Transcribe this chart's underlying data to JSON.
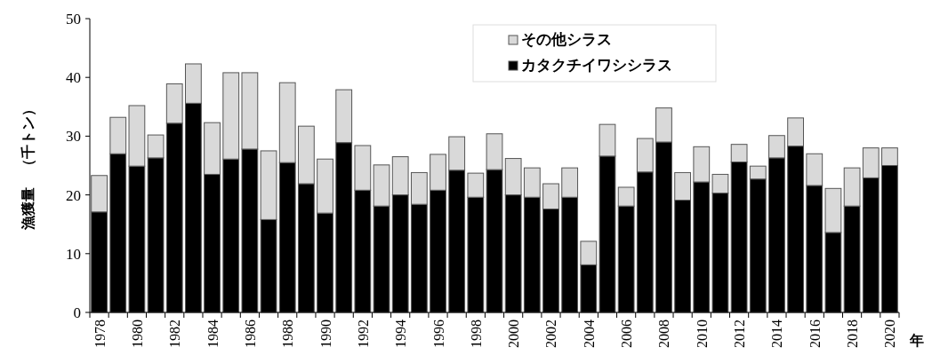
{
  "chart_data": {
    "type": "bar",
    "stacked": true,
    "ylabel": "漁獲量　（千トン）",
    "xlabel": "年",
    "categories": [
      "1978",
      null,
      "1980",
      null,
      "1982",
      null,
      "1984",
      null,
      "1986",
      null,
      "1988",
      null,
      "1990",
      null,
      "1992",
      null,
      "1994",
      null,
      "1996",
      null,
      "1998",
      null,
      "2000",
      null,
      "2002",
      null,
      "2004",
      null,
      "2006",
      null,
      "2008",
      null,
      "2010",
      null,
      "2012",
      null,
      "2014",
      null,
      "2016",
      null,
      "2018",
      null,
      "2020"
    ],
    "series": [
      {
        "name": "カタクチイワシシラス",
        "color": "#000000",
        "values": [
          17.1,
          27.0,
          24.9,
          26.3,
          32.2,
          35.6,
          23.5,
          26.1,
          27.8,
          15.8,
          25.5,
          21.9,
          16.9,
          28.9,
          20.8,
          18.1,
          20.0,
          18.4,
          20.8,
          24.2,
          19.6,
          24.3,
          20.0,
          19.6,
          17.6,
          19.6,
          8.1,
          26.6,
          18.1,
          23.9,
          29.0,
          19.1,
          22.2,
          20.3,
          25.6,
          22.7,
          26.3,
          28.3,
          21.6,
          13.6,
          18.1,
          22.9,
          25.0
        ]
      },
      {
        "name": "その他シラス",
        "color": "#d9d9d9",
        "values": [
          6.2,
          6.2,
          10.3,
          3.9,
          6.7,
          6.7,
          8.8,
          14.7,
          13.0,
          11.7,
          13.6,
          9.8,
          9.2,
          9.0,
          7.6,
          7.0,
          6.5,
          5.4,
          6.1,
          5.7,
          4.1,
          6.1,
          6.2,
          5.0,
          4.3,
          5.0,
          4.0,
          5.4,
          3.2,
          5.7,
          5.8,
          4.7,
          6.0,
          3.2,
          3.0,
          2.2,
          3.8,
          4.8,
          5.4,
          7.5,
          6.5,
          5.1,
          3.0
        ]
      }
    ],
    "ylim": [
      0,
      50
    ],
    "yticks": [
      0,
      10,
      20,
      30,
      40,
      50
    ],
    "legend": "top"
  }
}
